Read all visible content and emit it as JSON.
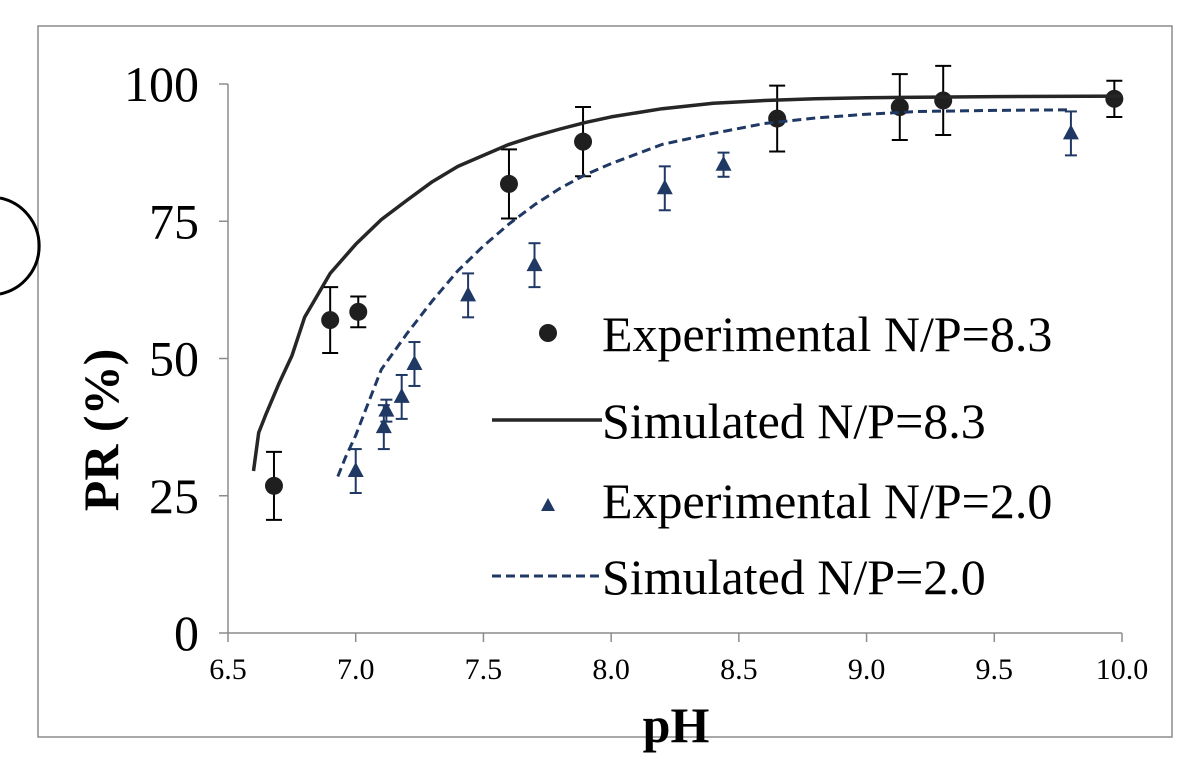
{
  "chart_data": {
    "type": "scatter",
    "xlabel": "pH",
    "ylabel": "PR (%)",
    "xlim": [
      6.5,
      10.0
    ],
    "ylim": [
      0,
      100
    ],
    "x_ticks": [
      "6.5",
      "7.0",
      "7.5",
      "8.0",
      "8.5",
      "9.0",
      "9.5",
      "10.0"
    ],
    "y_ticks": [
      "0",
      "25",
      "50",
      "75",
      "100"
    ],
    "grid": false,
    "legend_position": "center-right",
    "series": [
      {
        "name": "Experimental N/P=8.3",
        "kind": "scatter",
        "marker": "circle",
        "color": "#1f1f1f",
        "x": [
          6.68,
          6.9,
          7.01,
          7.6,
          7.89,
          8.65,
          9.13,
          9.3,
          9.97
        ],
        "y": [
          26.8,
          57.0,
          58.5,
          81.8,
          89.5,
          93.7,
          95.8,
          97.0,
          97.3
        ],
        "err": [
          6.2,
          6.0,
          2.8,
          6.3,
          6.3,
          6.0,
          6.0,
          6.3,
          3.3
        ]
      },
      {
        "name": "Simulated N/P=8.3",
        "kind": "line",
        "dash": "solid",
        "color": "#262626",
        "x": [
          6.6,
          6.62,
          6.65,
          6.7,
          6.75,
          6.8,
          6.85,
          6.9,
          7.0,
          7.1,
          7.2,
          7.3,
          7.4,
          7.5,
          7.6,
          7.7,
          7.8,
          7.9,
          8.0,
          8.2,
          8.4,
          8.6,
          8.8,
          9.0,
          9.5,
          10.0
        ],
        "y": [
          29.5,
          36.5,
          40.0,
          45.5,
          50.5,
          57.5,
          61.5,
          65.5,
          70.8,
          75.3,
          78.8,
          82.2,
          85.0,
          87.0,
          89.0,
          90.5,
          91.8,
          93.0,
          94.0,
          95.5,
          96.5,
          97.0,
          97.3,
          97.5,
          97.7,
          97.8
        ]
      },
      {
        "name": "Experimental N/P=2.0",
        "kind": "scatter",
        "marker": "triangle",
        "color": "#1f3864",
        "x": [
          7.0,
          7.11,
          7.12,
          7.18,
          7.23,
          7.44,
          7.7,
          8.21,
          8.44,
          9.8
        ],
        "y": [
          29.5,
          37.5,
          40.5,
          43.0,
          49.0,
          61.5,
          67.0,
          81.0,
          85.3,
          91.0
        ],
        "err": [
          4.0,
          4.0,
          2.0,
          4.0,
          4.0,
          4.0,
          4.0,
          4.0,
          2.2,
          4.0
        ]
      },
      {
        "name": "Simulated N/P=2.0",
        "kind": "line",
        "dash": "dashed",
        "color": "#1f3864",
        "x": [
          6.93,
          6.96,
          7.0,
          7.05,
          7.1,
          7.2,
          7.3,
          7.4,
          7.5,
          7.6,
          7.7,
          7.8,
          7.9,
          8.0,
          8.2,
          8.4,
          8.6,
          8.8,
          9.0,
          9.2,
          9.5,
          9.8
        ],
        "y": [
          28.5,
          32.0,
          36.0,
          42.0,
          48.0,
          54.5,
          60.5,
          66.0,
          70.5,
          74.5,
          78.0,
          81.0,
          83.5,
          85.5,
          89.0,
          91.0,
          92.8,
          93.8,
          94.5,
          95.0,
          95.2,
          95.3
        ]
      }
    ]
  }
}
